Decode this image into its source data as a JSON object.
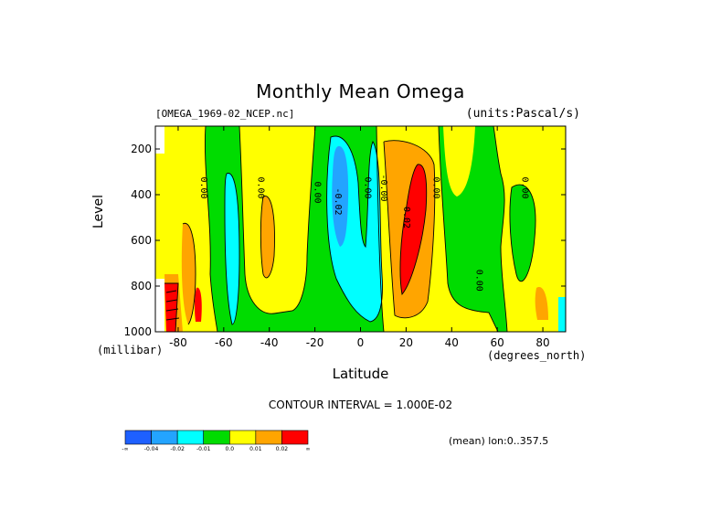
{
  "chart_data": {
    "type": "heatmap",
    "title": "Monthly Mean Omega",
    "source_label": "[OMEGA_1969-02_NCEP.nc]",
    "units_label": "(units:Pascal/s)",
    "xlabel": "Latitude",
    "ylabel": "Level",
    "x_unit_label": "(degrees_north)",
    "y_unit_label": "(millibar)",
    "xlim": [
      -90,
      90
    ],
    "ylim": [
      1000,
      100
    ],
    "y_reversed": true,
    "x_ticks": [
      "-80",
      "-60",
      "-40",
      "-20",
      "0",
      "20",
      "40",
      "60",
      "80"
    ],
    "y_ticks": [
      "200",
      "400",
      "600",
      "800",
      "1000"
    ],
    "contour_interval_text": "CONTOUR INTERVAL = 1.000E-02",
    "contour_labels": [
      {
        "text": "0.00",
        "lat": -70,
        "level": 370
      },
      {
        "text": "0.00",
        "lat": -45,
        "level": 370
      },
      {
        "text": "0.00",
        "lat": -20,
        "level": 390
      },
      {
        "text": "-0.02",
        "lat": -11,
        "level": 430
      },
      {
        "text": "0.00",
        "lat": 2,
        "level": 370
      },
      {
        "text": "-0.00",
        "lat": 9,
        "level": 370
      },
      {
        "text": "0.02",
        "lat": 19,
        "level": 500
      },
      {
        "text": "0.00",
        "lat": 32,
        "level": 370
      },
      {
        "text": "0.00",
        "lat": 51,
        "level": 775
      },
      {
        "text": "0.00",
        "lat": 71,
        "level": 370
      }
    ],
    "colorbar": {
      "colors": [
        "#1e60ff",
        "#23a4ff",
        "#00ffff",
        "#00dc00",
        "#ffff00",
        "#ffa500",
        "#ff0000"
      ],
      "labels": [
        "-∞",
        "-0.04",
        "-0.02",
        "-0.01",
        "0.0",
        "0.01",
        "0.02",
        "∞"
      ]
    },
    "grid": false,
    "legend": "bottom colorbar"
  },
  "footer": {
    "mean_label": "(mean) lon:0..357.5"
  }
}
